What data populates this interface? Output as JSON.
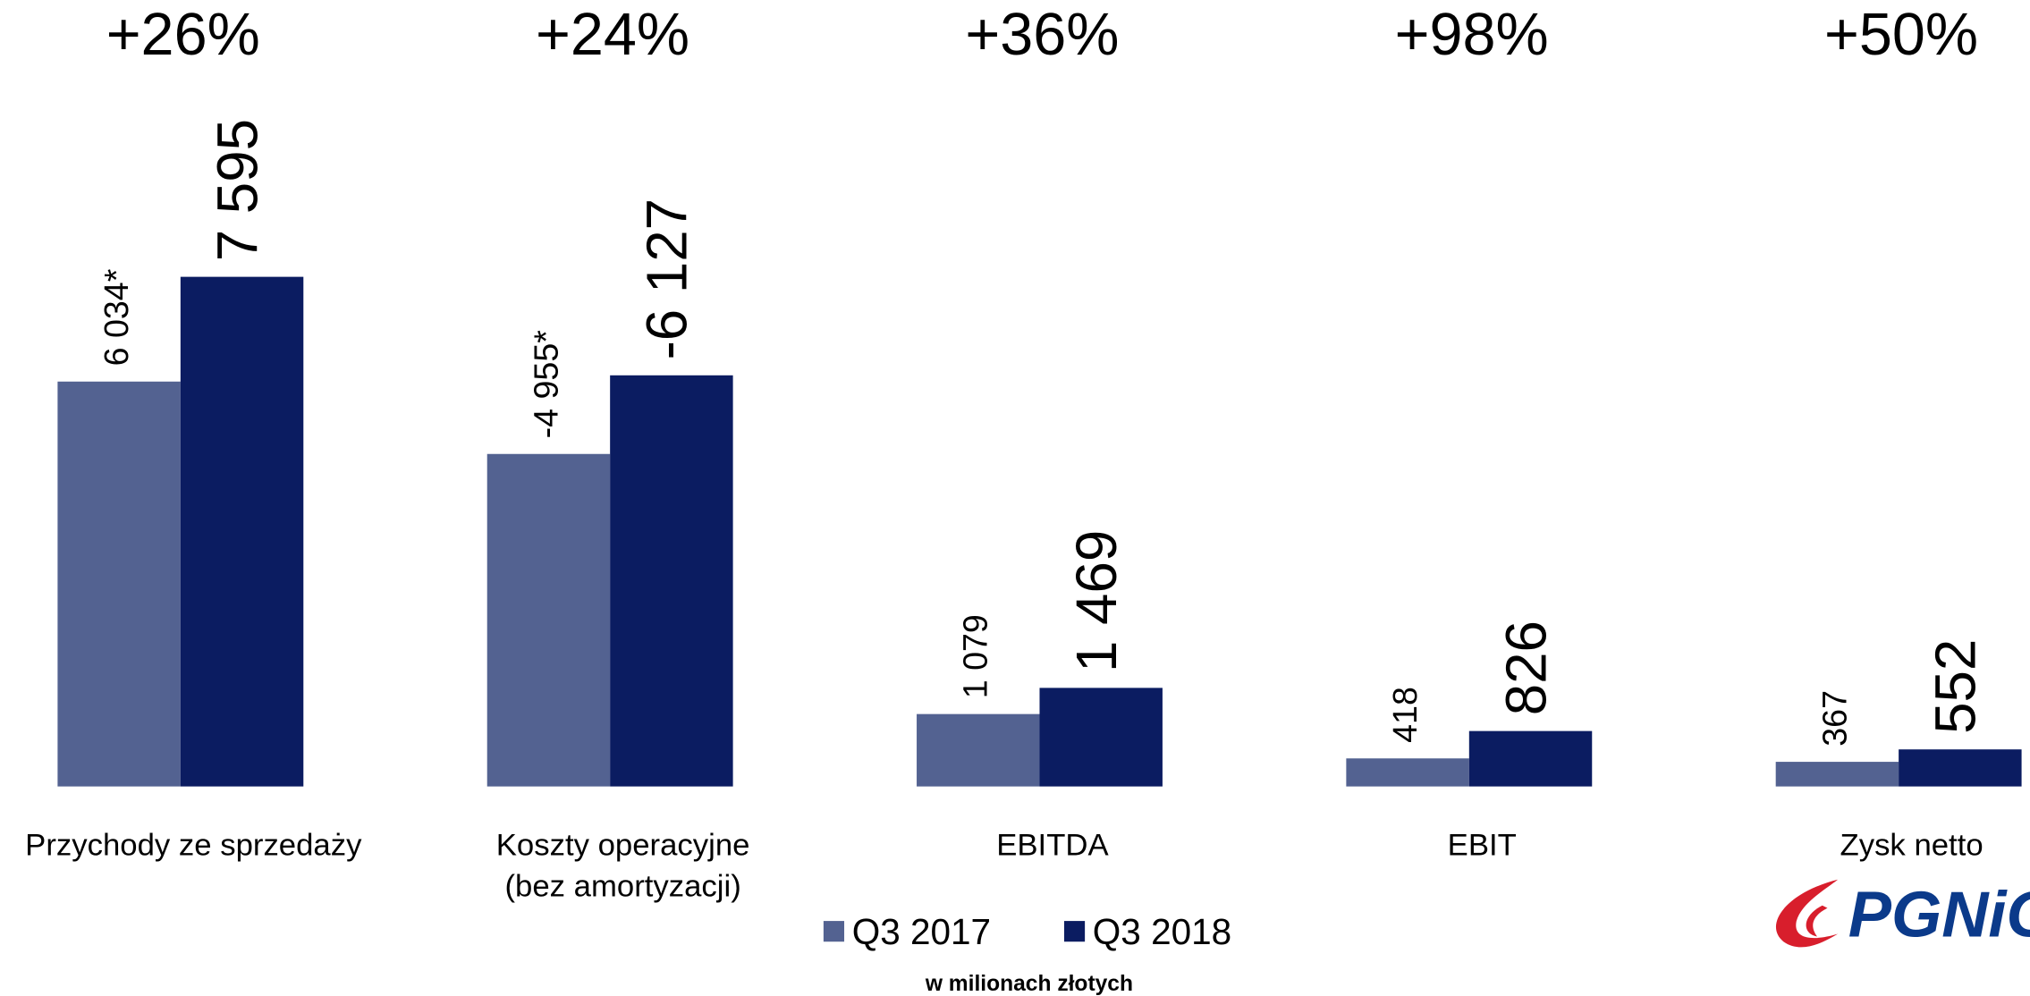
{
  "chart_data": {
    "type": "bar",
    "subtitle": "w milionach złotych",
    "categories": [
      "Przychody ze sprzedaży",
      [
        "Koszty operacyjne",
        "(bez amortyzacji)"
      ],
      "EBITDA",
      "EBIT",
      "Zysk netto"
    ],
    "annotations": [
      "+26%",
      "+24%",
      "+36%",
      "+98%",
      "+50%"
    ],
    "series": [
      {
        "name": "Q3 2017",
        "color": "#536291",
        "values": [
          6034,
          -4955,
          1079,
          418,
          367
        ],
        "value_labels": [
          "6 034*",
          "-4 955*",
          "1 079",
          "418",
          "367"
        ]
      },
      {
        "name": "Q3 2018",
        "color": "#0b1c61",
        "values": [
          7595,
          -6127,
          1469,
          826,
          552
        ],
        "value_labels": [
          "7 595",
          "-6 127",
          "1 469",
          "826",
          "552"
        ]
      }
    ],
    "ylim": [
      0,
      8000
    ],
    "logo": "PGNiG"
  }
}
